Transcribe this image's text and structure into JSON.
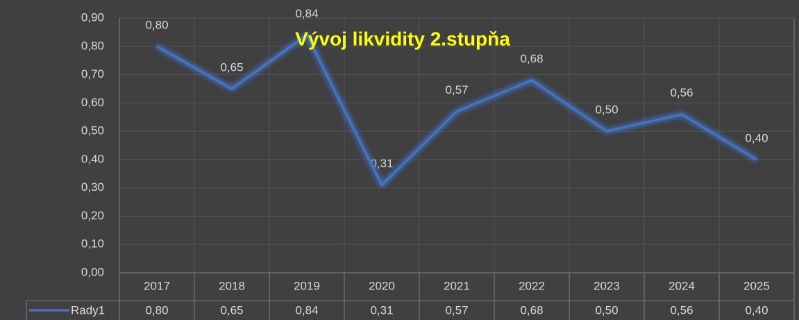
{
  "chart_data": {
    "type": "line",
    "title": "Vývoj likvidity 2.stupňa",
    "categories": [
      "2017",
      "2018",
      "2019",
      "2020",
      "2021",
      "2022",
      "2023",
      "2024",
      "2025"
    ],
    "series": [
      {
        "name": "Rady1",
        "color": "#4472c4",
        "values": [
          0.8,
          0.65,
          0.84,
          0.31,
          0.57,
          0.68,
          0.5,
          0.56,
          0.4
        ],
        "value_labels": [
          "0,80",
          "0,65",
          "0,84",
          "0,31",
          "0,57",
          "0,68",
          "0,50",
          "0,56",
          "0,40"
        ]
      }
    ],
    "ylim": [
      0,
      0.9
    ],
    "yticks": [
      {
        "value": 0,
        "label": "0,00"
      },
      {
        "value": 0.1,
        "label": "0,10"
      },
      {
        "value": 0.2,
        "label": "0,20"
      },
      {
        "value": 0.3,
        "label": "0,30"
      },
      {
        "value": 0.4,
        "label": "0,40"
      },
      {
        "value": 0.5,
        "label": "0,50"
      },
      {
        "value": 0.6,
        "label": "0,60"
      },
      {
        "value": 0.7,
        "label": "0,70"
      },
      {
        "value": 0.8,
        "label": "0,80"
      },
      {
        "value": 0.9,
        "label": "0,90"
      }
    ],
    "grid": true,
    "data_table": true
  }
}
